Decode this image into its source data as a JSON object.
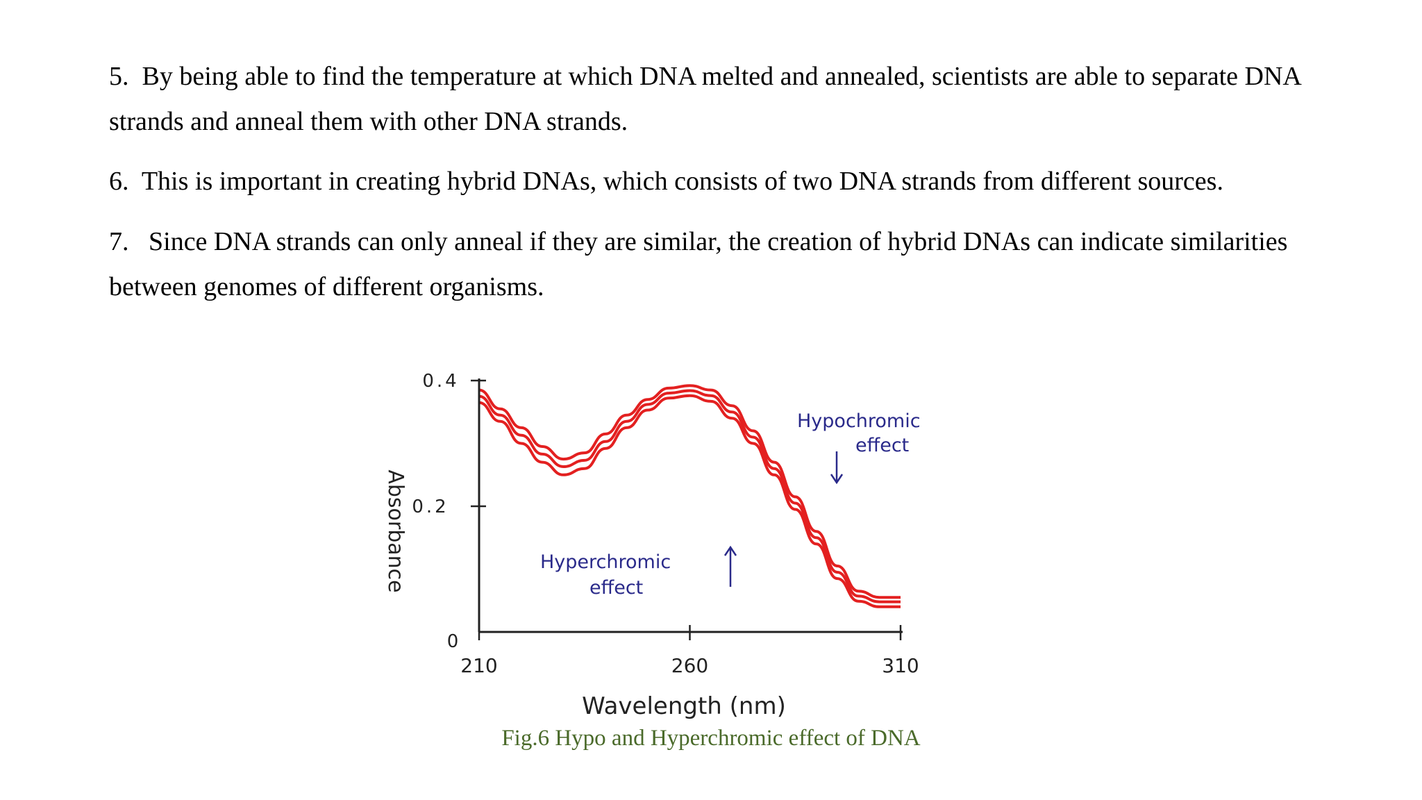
{
  "paragraphs": [
    {
      "number": "5.",
      "text": "By being able to find the temperature at which DNA melted and annealed, scientists are able to separate DNA strands and anneal them with other DNA strands."
    },
    {
      "number": "6.",
      "text": "This is important in creating hybrid DNAs, which consists of two DNA strands from different sources."
    },
    {
      "number": "7.",
      "text": "Since DNA strands can only anneal if they are similar, the creation of hybrid DNAs can indicate similarities between genomes of different organisms."
    }
  ],
  "figure": {
    "caption": "Fig.6 Hypo and Hyperchromic effect of DNA",
    "annotations": {
      "hypochromic_line1": "Hypochromic",
      "hypochromic_line2": "effect",
      "hyperchromic_line1": "Hyperchromic",
      "hyperchromic_line2": "effect"
    },
    "colors": {
      "curve": "#e32020",
      "annotation": "#2a2a8a",
      "axis": "#222222",
      "caption": "#4a6a2a"
    }
  },
  "chart_data": {
    "type": "line",
    "title": "",
    "xlabel": "Wavelength (nm)",
    "ylabel": "Absorbance",
    "xlim": [
      210,
      310
    ],
    "ylim": [
      0,
      0.4
    ],
    "x_ticks": [
      "210",
      "260",
      "310"
    ],
    "y_ticks": [
      "0",
      "0.2",
      "0.4"
    ],
    "grid": false,
    "series": [
      {
        "x": [
          210,
          215,
          220,
          225,
          230,
          235,
          240,
          245,
          250,
          255,
          260,
          265,
          270,
          275,
          280,
          285,
          290,
          295,
          300,
          305,
          310
        ],
        "values": [
          0.385,
          0.355,
          0.325,
          0.295,
          0.275,
          0.285,
          0.315,
          0.345,
          0.37,
          0.388,
          0.392,
          0.385,
          0.36,
          0.32,
          0.27,
          0.215,
          0.16,
          0.105,
          0.065,
          0.055,
          0.055
        ]
      },
      {
        "x": [
          210,
          215,
          220,
          225,
          230,
          235,
          240,
          245,
          250,
          255,
          260,
          265,
          270,
          275,
          280,
          285,
          290,
          295,
          300,
          305,
          310
        ],
        "values": [
          0.375,
          0.345,
          0.313,
          0.283,
          0.263,
          0.273,
          0.303,
          0.335,
          0.362,
          0.38,
          0.384,
          0.376,
          0.35,
          0.31,
          0.26,
          0.205,
          0.15,
          0.095,
          0.057,
          0.048,
          0.048
        ]
      },
      {
        "x": [
          210,
          215,
          220,
          225,
          230,
          235,
          240,
          245,
          250,
          255,
          260,
          265,
          270,
          275,
          280,
          285,
          290,
          295,
          300,
          305,
          310
        ],
        "values": [
          0.365,
          0.335,
          0.3,
          0.27,
          0.25,
          0.26,
          0.292,
          0.325,
          0.353,
          0.372,
          0.376,
          0.367,
          0.34,
          0.3,
          0.25,
          0.195,
          0.14,
          0.085,
          0.049,
          0.04,
          0.04
        ]
      }
    ]
  }
}
